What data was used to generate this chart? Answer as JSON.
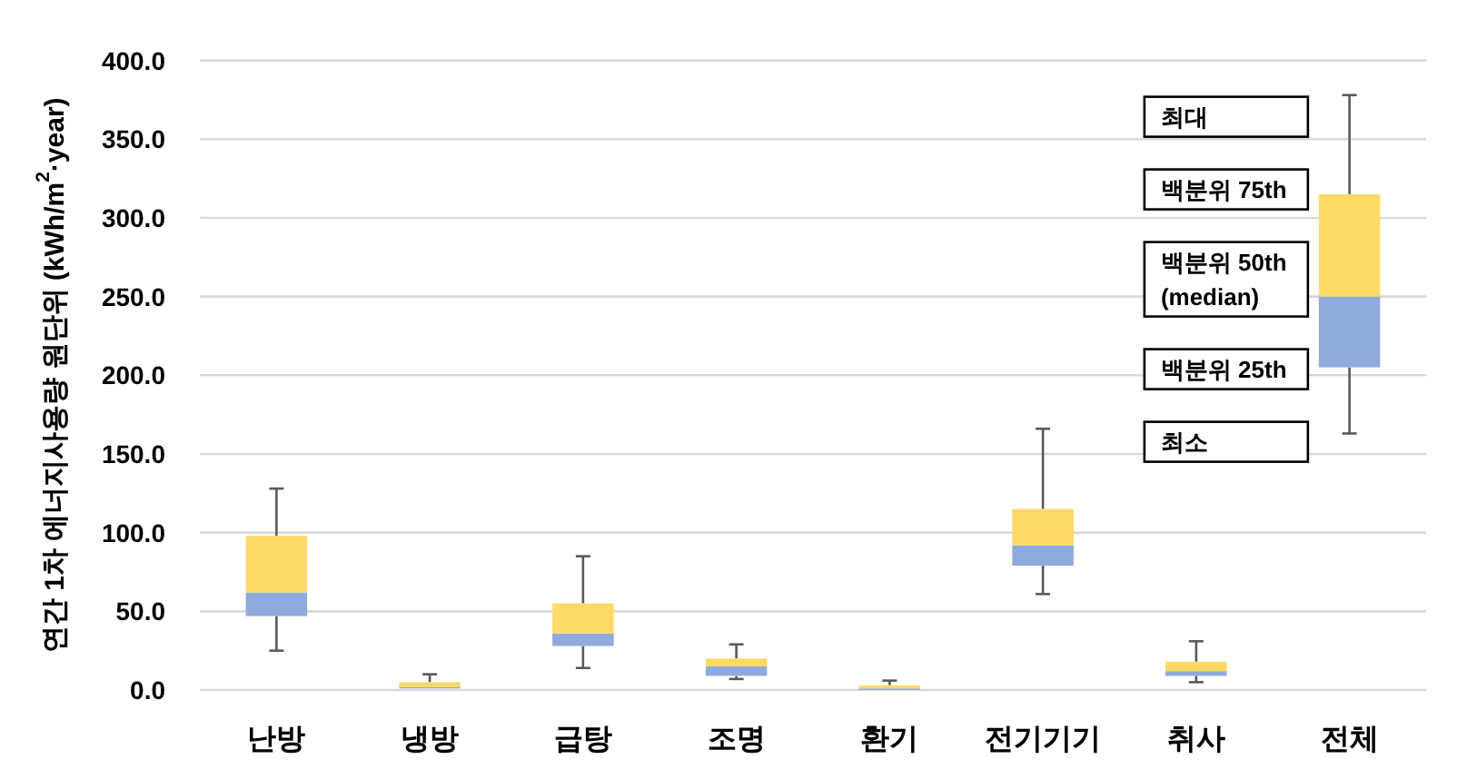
{
  "chart_data": {
    "type": "box",
    "ylabel": "연간 1차 에너지사용량 원단위 (kWh/m$^{2}$·year)",
    "categories": [
      "난방",
      "냉방",
      "급탕",
      "조명",
      "환기",
      "전기기기",
      "취사",
      "전체"
    ],
    "boxes": [
      {
        "low": 25,
        "q1": 47,
        "median": 62,
        "q3": 98,
        "high": 128
      },
      {
        "low": 1,
        "q1": 1,
        "median": 2,
        "q3": 5,
        "high": 10
      },
      {
        "low": 14,
        "q1": 28,
        "median": 36,
        "q3": 55,
        "high": 85
      },
      {
        "low": 7,
        "q1": 9,
        "median": 15,
        "q3": 20,
        "high": 29
      },
      {
        "low": 0,
        "q1": 0,
        "median": 1,
        "q3": 3,
        "high": 6
      },
      {
        "low": 61,
        "q1": 79,
        "median": 92,
        "q3": 115,
        "high": 166
      },
      {
        "low": 5,
        "q1": 9,
        "median": 12,
        "q3": 18,
        "high": 31
      },
      {
        "low": 163,
        "q1": 205,
        "median": 250,
        "q3": 315,
        "high": 378
      }
    ],
    "colors": [
      [
        "#8faadc",
        "#ffd966"
      ],
      [
        "#8faadc",
        "#ffd966"
      ],
      [
        "#8faadc",
        "#ffd966"
      ],
      [
        "#8faadc",
        "#ffd966"
      ],
      [
        "#8faadc",
        "#ffd966"
      ],
      [
        "#8faadc",
        "#ffd966"
      ],
      [
        "#8faadc",
        "#ffd966"
      ],
      [
        "#8faadc",
        "#ffd966"
      ]
    ],
    "ylim": [
      0,
      400
    ],
    "yticks": [
      {
        "value": 0,
        "label": "0.0"
      },
      {
        "value": 50,
        "label": "50.0"
      },
      {
        "value": 100,
        "label": "100.0"
      },
      {
        "value": 150,
        "label": "150.0"
      },
      {
        "value": 200,
        "label": "200.0"
      },
      {
        "value": 250,
        "label": "250.0"
      },
      {
        "value": 300,
        "label": "300.0"
      },
      {
        "value": 350,
        "label": "350.0"
      },
      {
        "value": 400,
        "label": "400.0"
      }
    ],
    "grid": "y",
    "annotations": [
      "최대",
      "백분위 75th",
      "백분위 50th (median)",
      "백분위 25th",
      "최소"
    ]
  }
}
